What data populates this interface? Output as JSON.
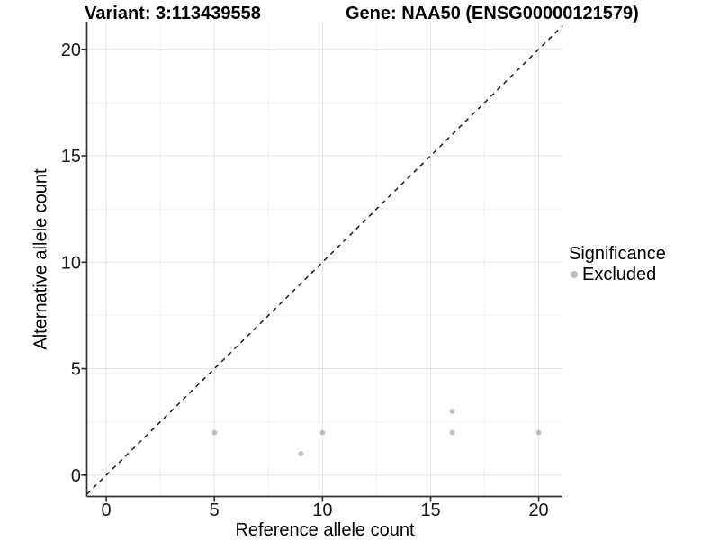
{
  "header": {
    "variant_title": "Variant: 3:113439558",
    "gene_title": "Gene: NAA50 (ENSG00000121579)"
  },
  "chart_data": {
    "type": "scatter",
    "xlabel": "Reference allele count",
    "ylabel": "Alternative allele count",
    "xlim": [
      -0.9,
      21.1
    ],
    "ylim": [
      -1.0,
      21.3
    ],
    "x_ticks": [
      0,
      5,
      10,
      15,
      20
    ],
    "y_ticks": [
      0,
      5,
      10,
      15,
      20
    ],
    "x_minor_ticks": [
      2.5,
      7.5,
      12.5,
      17.5
    ],
    "y_minor_ticks": [
      2.5,
      7.5,
      12.5,
      17.5
    ],
    "grid": true,
    "series": [
      {
        "name": "Excluded",
        "marker": "circle",
        "color": "#bebebe",
        "points": [
          [
            5,
            2
          ],
          [
            9,
            1
          ],
          [
            10,
            2
          ],
          [
            16,
            2
          ],
          [
            16,
            3
          ],
          [
            20,
            2
          ]
        ]
      }
    ],
    "reference_line": {
      "equation": "y = x",
      "style": "dashed",
      "color": "#1a1a1a"
    },
    "legend": {
      "title": "Significance",
      "position": "right",
      "items": [
        {
          "label": "Excluded",
          "color": "#bebebe"
        }
      ]
    },
    "colors": {
      "point": "#bebebe",
      "grid_major": "#e3e3e3",
      "grid_minor": "#f0f0f0",
      "axis": "#333333",
      "tick_text": "#1a1a1a"
    }
  }
}
